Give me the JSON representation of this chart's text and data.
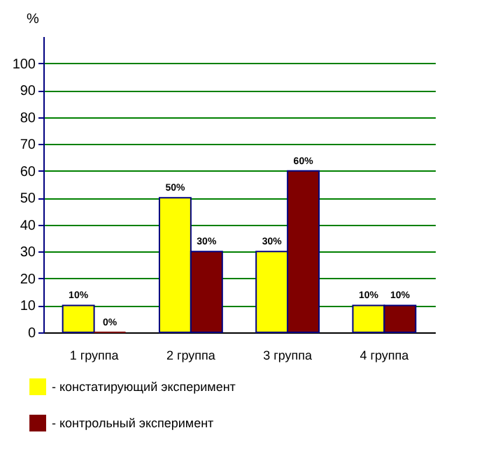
{
  "chart_data": {
    "type": "bar",
    "ylabel": "%",
    "categories": [
      "1 группа",
      "2 группа",
      "3 группа",
      "4 группа"
    ],
    "series": [
      {
        "name": "- констатирующий эксперимент",
        "color": "#ffff00",
        "values": [
          10,
          50,
          30,
          10
        ],
        "value_labels": [
          "10%",
          "50%",
          "30%",
          "10%"
        ]
      },
      {
        "name": "- контрольный эксперимент",
        "color": "#800000",
        "values": [
          0,
          30,
          60,
          10
        ],
        "value_labels": [
          "0%",
          "30%",
          "60%",
          "10%"
        ]
      }
    ],
    "ylim": [
      0,
      110
    ],
    "yticks": [
      0,
      10,
      20,
      30,
      40,
      50,
      60,
      70,
      80,
      90,
      100
    ],
    "grid": "y",
    "legend": "bottom left"
  }
}
